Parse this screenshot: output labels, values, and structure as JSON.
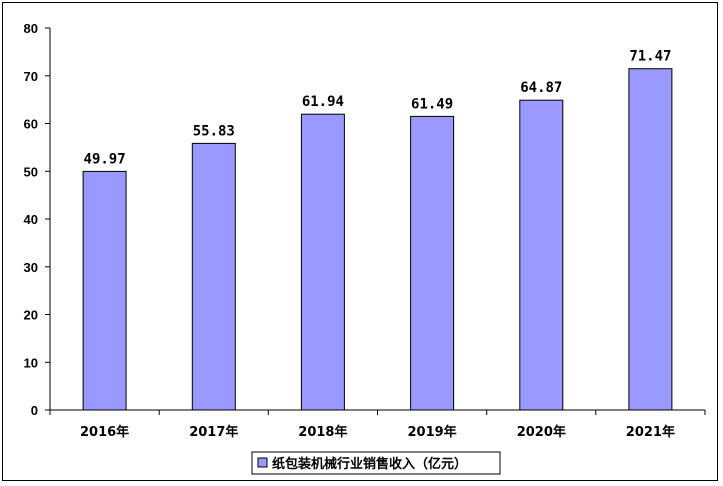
{
  "chart_data": {
    "type": "bar",
    "categories": [
      "2016年",
      "2017年",
      "2018年",
      "2019年",
      "2020年",
      "2021年"
    ],
    "series": [
      {
        "name": "纸包装机械行业销售收入（亿元）",
        "values": [
          49.97,
          55.83,
          61.94,
          61.49,
          64.87,
          71.47
        ]
      }
    ],
    "value_labels": [
      "49.97",
      "55.83",
      "61.94",
      "61.49",
      "64.87",
      "71.47"
    ],
    "ylim": [
      0,
      80
    ],
    "yticks": [
      "0",
      "10",
      "20",
      "30",
      "40",
      "50",
      "60",
      "70",
      "80"
    ],
    "ytick_values": [
      0,
      10,
      20,
      30,
      40,
      50,
      60,
      70,
      80
    ],
    "title": "",
    "xlabel": "",
    "ylabel": "",
    "grid": false,
    "legend_position": "bottom",
    "bar_color": "#9999ff",
    "bar_edge_color": "#000000"
  }
}
